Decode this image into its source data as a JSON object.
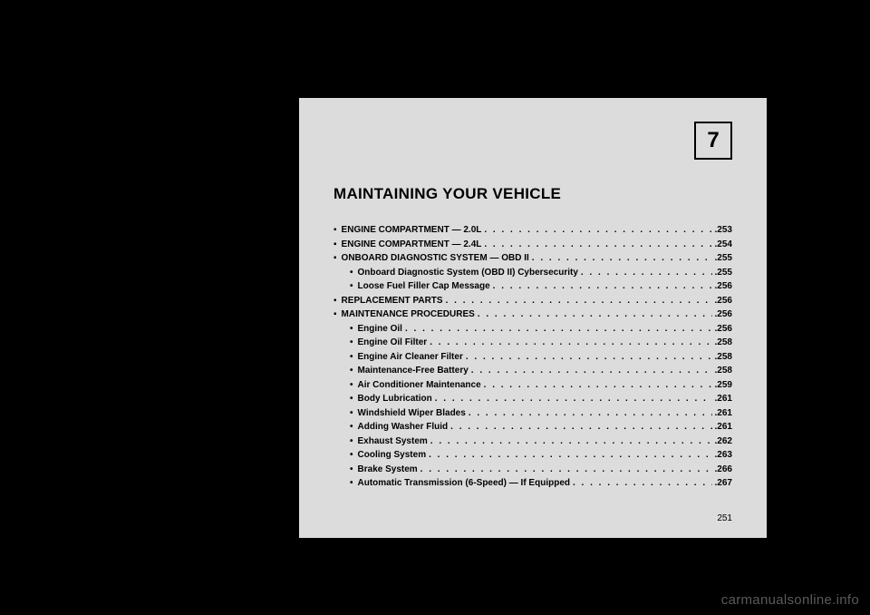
{
  "chapter_number": "7",
  "title": "MAINTAINING YOUR VEHICLE",
  "toc": [
    {
      "level": 0,
      "bullet": "▪",
      "label": "ENGINE COMPARTMENT — 2.0L",
      "page": ".253"
    },
    {
      "level": 0,
      "bullet": "▪",
      "label": "ENGINE COMPARTMENT — 2.4L",
      "page": ".254"
    },
    {
      "level": 0,
      "bullet": "▪",
      "label": "ONBOARD DIAGNOSTIC SYSTEM — OBD II",
      "page": ".255"
    },
    {
      "level": 1,
      "bullet": "•",
      "label": "Onboard Diagnostic System (OBD II) Cybersecurity",
      "page": ".255"
    },
    {
      "level": 1,
      "bullet": "•",
      "label": "Loose Fuel Filler Cap Message",
      "page": ".256"
    },
    {
      "level": 0,
      "bullet": "▪",
      "label": "REPLACEMENT PARTS",
      "page": ".256"
    },
    {
      "level": 0,
      "bullet": "▪",
      "label": "MAINTENANCE PROCEDURES",
      "page": ".256"
    },
    {
      "level": 1,
      "bullet": "•",
      "label": "Engine Oil",
      "page": ".256"
    },
    {
      "level": 1,
      "bullet": "•",
      "label": "Engine Oil Filter",
      "page": ".258"
    },
    {
      "level": 1,
      "bullet": "•",
      "label": "Engine Air Cleaner Filter",
      "page": ".258"
    },
    {
      "level": 1,
      "bullet": "•",
      "label": "Maintenance-Free Battery",
      "page": ".258"
    },
    {
      "level": 1,
      "bullet": "•",
      "label": "Air Conditioner Maintenance",
      "page": ".259"
    },
    {
      "level": 1,
      "bullet": "•",
      "label": "Body Lubrication",
      "page": ".261"
    },
    {
      "level": 1,
      "bullet": "•",
      "label": "Windshield Wiper Blades",
      "page": ".261"
    },
    {
      "level": 1,
      "bullet": "•",
      "label": "Adding Washer Fluid",
      "page": ".261"
    },
    {
      "level": 1,
      "bullet": "•",
      "label": "Exhaust System",
      "page": ".262"
    },
    {
      "level": 1,
      "bullet": "•",
      "label": "Cooling System",
      "page": ".263"
    },
    {
      "level": 1,
      "bullet": "•",
      "label": "Brake System",
      "page": ".266"
    },
    {
      "level": 1,
      "bullet": "•",
      "label": "Automatic Transmission (6-Speed) — If Equipped",
      "page": ".267"
    }
  ],
  "page_number": "251",
  "watermark": "carmanualsonline.info",
  "colors": {
    "background": "#000000",
    "page_bg": "#dcdcdc",
    "text": "#000000",
    "watermark": "#5a5a5a"
  }
}
